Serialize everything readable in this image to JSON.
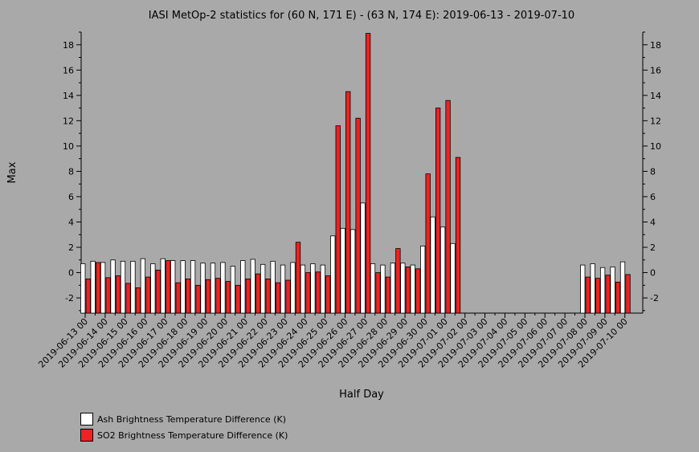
{
  "chart_data": {
    "type": "bar",
    "title": "IASI MetOp-2 statistics for (60 N, 171 E) - (63 N, 174 E): 2019-06-13 - 2019-07-10",
    "xlabel": "Half Day",
    "ylabel": "Max",
    "ylim": [
      -3.2,
      19
    ],
    "yticks": [
      -2,
      0,
      2,
      4,
      6,
      8,
      10,
      12,
      14,
      16,
      18
    ],
    "grid": false,
    "legend_position": "bottom-left",
    "categories": [
      "2019-06-13 00",
      "2019-06-13 12",
      "2019-06-14 00",
      "2019-06-14 12",
      "2019-06-15 00",
      "2019-06-15 12",
      "2019-06-16 00",
      "2019-06-16 12",
      "2019-06-17 00",
      "2019-06-17 12",
      "2019-06-18 00",
      "2019-06-18 12",
      "2019-06-19 00",
      "2019-06-19 12",
      "2019-06-20 00",
      "2019-06-20 12",
      "2019-06-21 00",
      "2019-06-21 12",
      "2019-06-22 00",
      "2019-06-22 12",
      "2019-06-23 00",
      "2019-06-23 12",
      "2019-06-24 00",
      "2019-06-24 12",
      "2019-06-25 00",
      "2019-06-25 12",
      "2019-06-26 00",
      "2019-06-26 12",
      "2019-06-27 00",
      "2019-06-27 12",
      "2019-06-28 00",
      "2019-06-28 12",
      "2019-06-29 00",
      "2019-06-29 12",
      "2019-06-30 00",
      "2019-06-30 12",
      "2019-07-01 00",
      "2019-07-01 12",
      "2019-07-02 00",
      "2019-07-02 12",
      "2019-07-03 00",
      "2019-07-03 12",
      "2019-07-04 00",
      "2019-07-04 12",
      "2019-07-05 00",
      "2019-07-05 12",
      "2019-07-06 00",
      "2019-07-06 12",
      "2019-07-07 00",
      "2019-07-07 12",
      "2019-07-08 00",
      "2019-07-08 12",
      "2019-07-09 00",
      "2019-07-09 12",
      "2019-07-10 00"
    ],
    "tick_labels": [
      "2019-06-13 00",
      "2019-06-14 00",
      "2019-06-15 00",
      "2019-06-16 00",
      "2019-06-17 00",
      "2019-06-18 00",
      "2019-06-19 00",
      "2019-06-20 00",
      "2019-06-21 00",
      "2019-06-22 00",
      "2019-06-23 00",
      "2019-06-24 00",
      "2019-06-25 00",
      "2019-06-26 00",
      "2019-06-27 00",
      "2019-06-28 00",
      "2019-06-29 00",
      "2019-06-30 00",
      "2019-07-01 00",
      "2019-07-02 00",
      "2019-07-03 00",
      "2019-07-04 00",
      "2019-07-05 00",
      "2019-07-06 00",
      "2019-07-07 00",
      "2019-07-08 00",
      "2019-07-09 00",
      "2019-07-10 00"
    ],
    "series": [
      {
        "name": "Ash Brightness Temperature Difference (K)",
        "color": "#ffffff",
        "values": [
          0.7,
          0.9,
          0.8,
          1.0,
          0.9,
          0.9,
          1.1,
          0.7,
          1.1,
          0.95,
          0.95,
          0.95,
          0.75,
          0.75,
          0.8,
          0.5,
          0.95,
          1.05,
          0.65,
          0.9,
          0.6,
          0.8,
          0.6,
          0.7,
          0.6,
          2.9,
          3.5,
          3.4,
          5.5,
          0.7,
          0.6,
          0.75,
          0.75,
          0.6,
          2.1,
          4.4,
          3.6,
          2.3,
          null,
          null,
          null,
          null,
          null,
          null,
          null,
          null,
          null,
          null,
          null,
          null,
          0.6,
          0.7,
          0.4,
          0.45,
          0.85
        ]
      },
      {
        "name": "SO2 Brightness Temperature Difference (K)",
        "color": "#ee2222",
        "values": [
          -0.5,
          0.8,
          -0.4,
          -0.25,
          -0.85,
          -1.2,
          -0.35,
          0.2,
          0.95,
          -0.8,
          -0.5,
          -1.0,
          -0.55,
          -0.45,
          -0.7,
          -1.0,
          -0.5,
          -0.1,
          -0.5,
          -0.8,
          -0.6,
          2.4,
          0.0,
          0.05,
          -0.25,
          11.6,
          14.3,
          12.2,
          18.9,
          0.0,
          -0.35,
          1.9,
          0.45,
          0.3,
          7.8,
          13.0,
          13.6,
          9.1,
          null,
          null,
          null,
          null,
          null,
          null,
          null,
          null,
          null,
          null,
          null,
          null,
          -0.35,
          -0.45,
          -0.2,
          -0.75,
          -0.15
        ]
      }
    ]
  }
}
